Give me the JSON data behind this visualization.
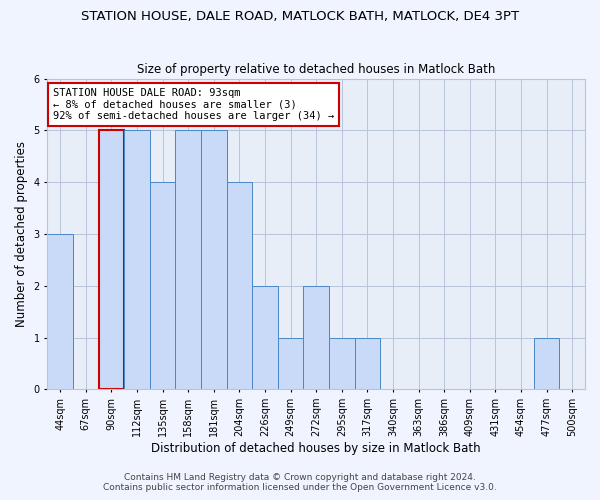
{
  "title": "STATION HOUSE, DALE ROAD, MATLOCK BATH, MATLOCK, DE4 3PT",
  "subtitle": "Size of property relative to detached houses in Matlock Bath",
  "xlabel": "Distribution of detached houses by size in Matlock Bath",
  "ylabel": "Number of detached properties",
  "footer1": "Contains HM Land Registry data © Crown copyright and database right 2024.",
  "footer2": "Contains public sector information licensed under the Open Government Licence v3.0.",
  "annotation_title": "STATION HOUSE DALE ROAD: 93sqm",
  "annotation_line2": "← 8% of detached houses are smaller (3)",
  "annotation_line3": "92% of semi-detached houses are larger (34) →",
  "bin_labels": [
    "44sqm",
    "67sqm",
    "90sqm",
    "112sqm",
    "135sqm",
    "158sqm",
    "181sqm",
    "204sqm",
    "226sqm",
    "249sqm",
    "272sqm",
    "295sqm",
    "317sqm",
    "340sqm",
    "363sqm",
    "386sqm",
    "409sqm",
    "431sqm",
    "454sqm",
    "477sqm",
    "500sqm"
  ],
  "values": [
    3,
    0,
    5,
    5,
    4,
    5,
    5,
    4,
    2,
    1,
    2,
    1,
    1,
    0,
    0,
    0,
    0,
    0,
    0,
    1,
    0
  ],
  "highlight_index": 2,
  "bar_color": "#c9daf8",
  "bar_edge_color": "#4a86c8",
  "highlight_bar_edge_color": "#cc0000",
  "ylim": [
    0,
    6
  ],
  "yticks": [
    0,
    1,
    2,
    3,
    4,
    5,
    6
  ],
  "background_color": "#f0f4ff",
  "plot_bg_color": "#e8eef8",
  "grid_color": "#b8c4d8",
  "title_fontsize": 9.5,
  "subtitle_fontsize": 8.5,
  "ylabel_fontsize": 8.5,
  "xlabel_fontsize": 8.5,
  "tick_fontsize": 7,
  "annotation_fontsize": 7.5,
  "footer_fontsize": 6.5
}
